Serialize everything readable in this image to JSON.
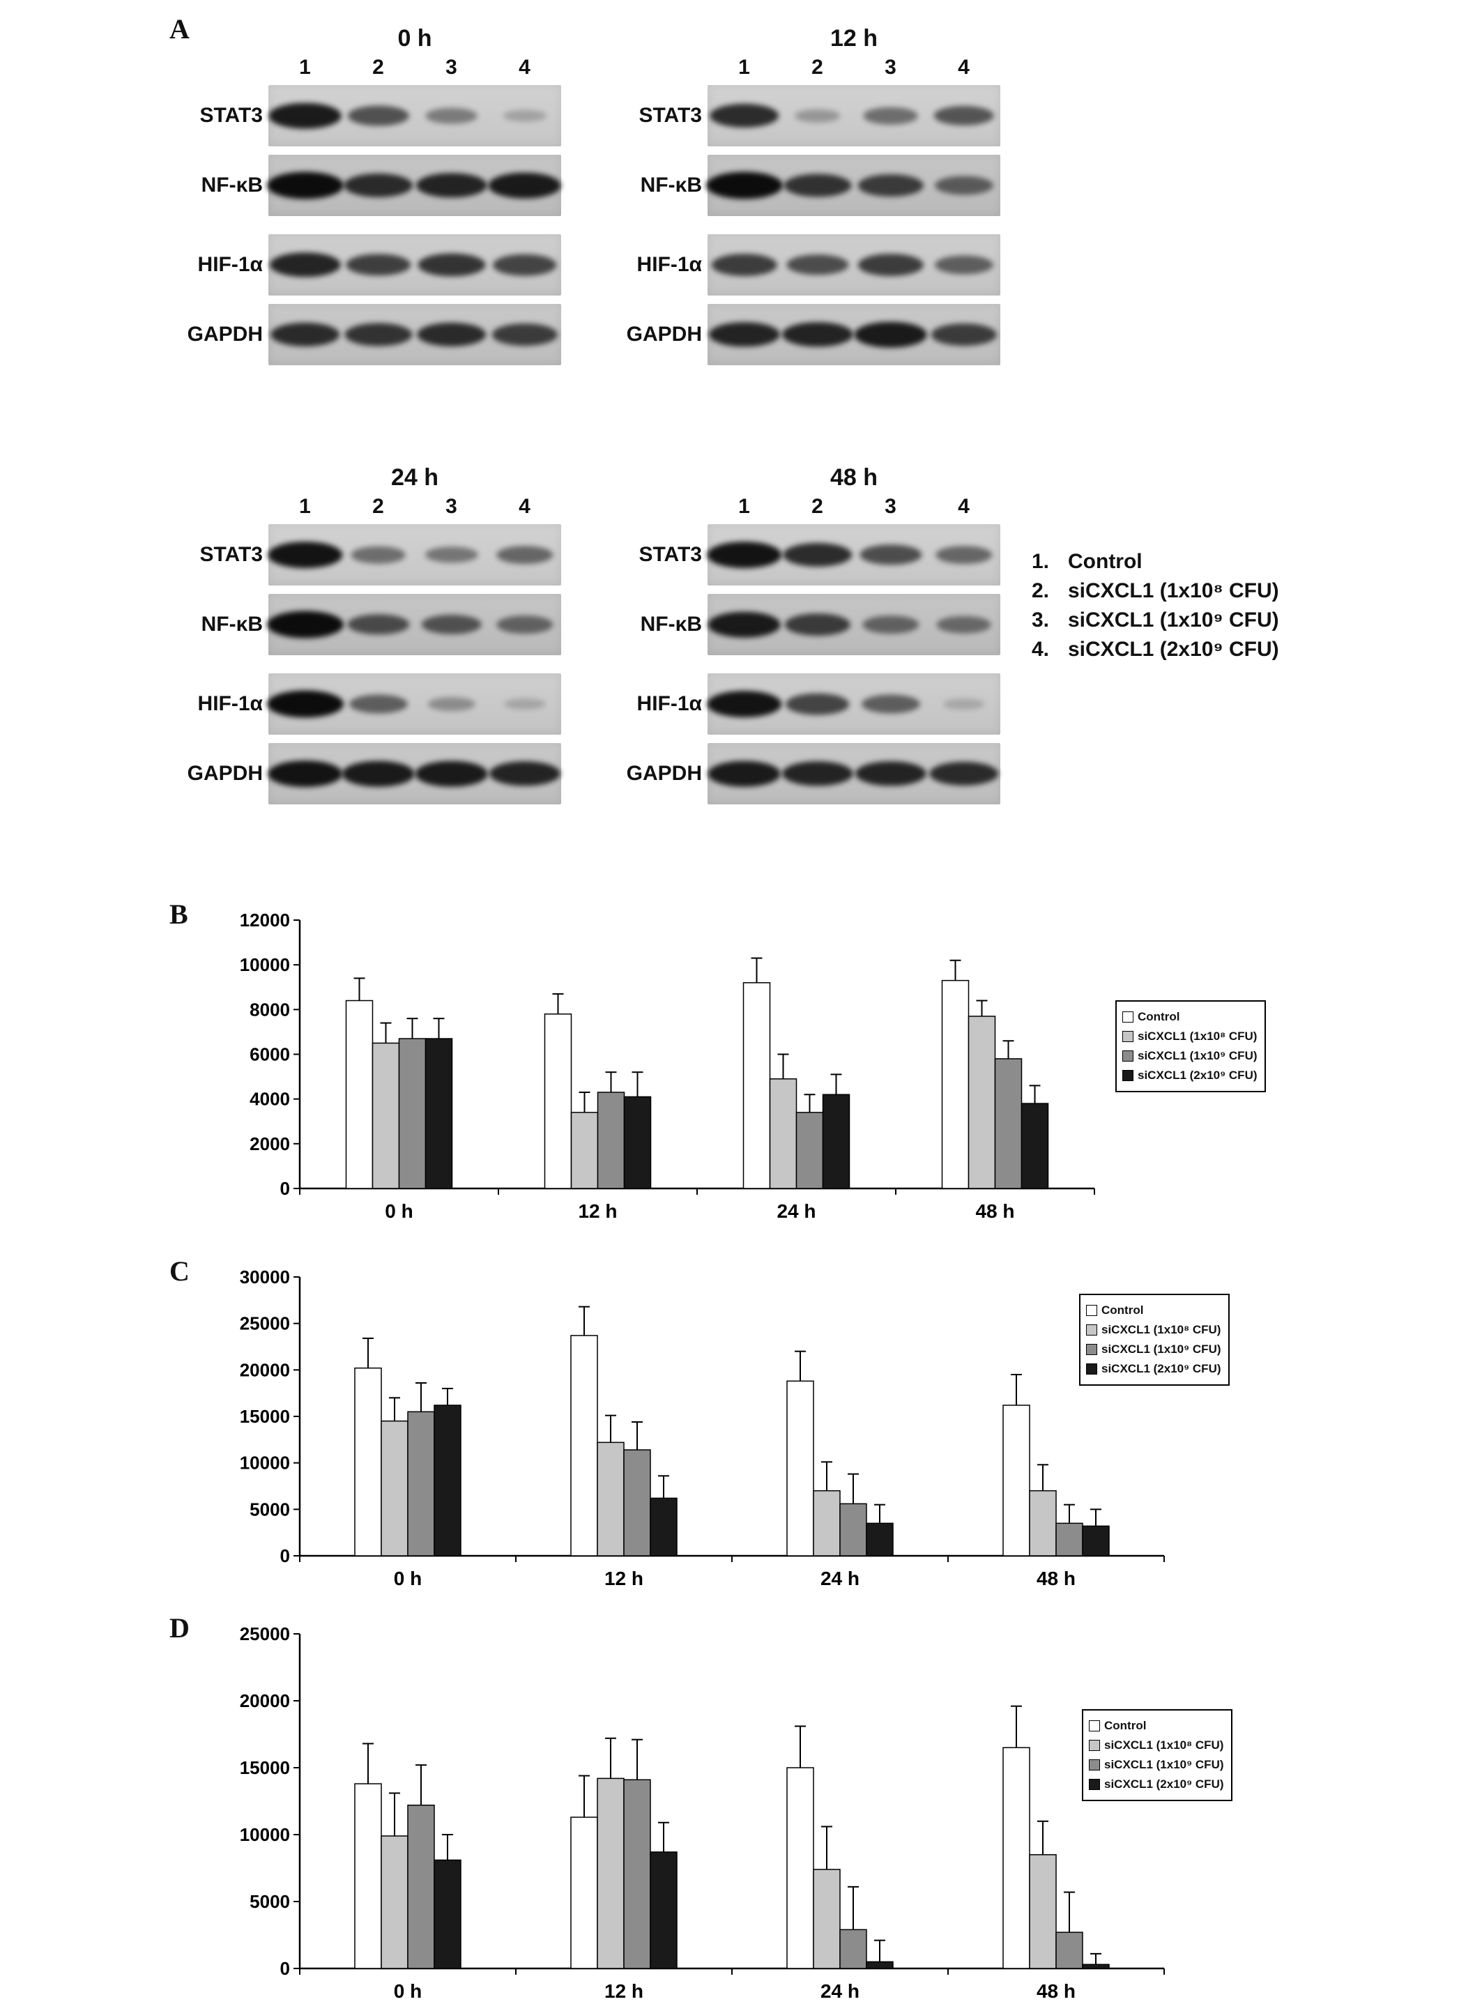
{
  "labels": {
    "a": "A",
    "b": "B",
    "c": "C",
    "d": "D"
  },
  "panel_a": {
    "lane_numbers": [
      "1",
      "2",
      "3",
      "4"
    ],
    "groups": [
      {
        "title": "0 h",
        "rows": [
          {
            "label": "STAT3",
            "bands": [
              0.9,
              0.58,
              0.32,
              0.08
            ]
          },
          {
            "label": "NF-κB",
            "bands": [
              1.0,
              0.8,
              0.85,
              0.9
            ]
          },
          {
            "label": "HIF-1α",
            "bands": [
              0.85,
              0.68,
              0.75,
              0.65
            ]
          },
          {
            "label": "GAPDH",
            "bands": [
              0.8,
              0.75,
              0.8,
              0.7
            ]
          }
        ]
      },
      {
        "title": "12 h",
        "rows": [
          {
            "label": "STAT3",
            "bands": [
              0.8,
              0.15,
              0.4,
              0.55
            ]
          },
          {
            "label": "NF-κB",
            "bands": [
              1.0,
              0.75,
              0.7,
              0.5
            ]
          },
          {
            "label": "HIF-1α",
            "bands": [
              0.7,
              0.6,
              0.7,
              0.5
            ]
          },
          {
            "label": "GAPDH",
            "bands": [
              0.85,
              0.85,
              0.9,
              0.7
            ]
          }
        ]
      },
      {
        "title": "24 h",
        "rows": [
          {
            "label": "STAT3",
            "bands": [
              0.95,
              0.4,
              0.35,
              0.45
            ]
          },
          {
            "label": "NF-κB",
            "bands": [
              1.0,
              0.6,
              0.55,
              0.45
            ]
          },
          {
            "label": "HIF-1α",
            "bands": [
              1.0,
              0.5,
              0.2,
              0.05
            ]
          },
          {
            "label": "GAPDH",
            "bands": [
              0.95,
              0.9,
              0.9,
              0.85
            ]
          }
        ]
      },
      {
        "title": "48 h",
        "rows": [
          {
            "label": "STAT3",
            "bands": [
              0.95,
              0.8,
              0.6,
              0.45
            ]
          },
          {
            "label": "NF-κB",
            "bands": [
              0.9,
              0.7,
              0.45,
              0.4
            ]
          },
          {
            "label": "HIF-1α",
            "bands": [
              0.95,
              0.65,
              0.5,
              0.03
            ]
          },
          {
            "label": "GAPDH",
            "bands": [
              0.9,
              0.85,
              0.85,
              0.8
            ]
          }
        ]
      }
    ],
    "legend": [
      {
        "num": "1.",
        "text": "Control"
      },
      {
        "num": "2.",
        "text": "siCXCL1 (1x10⁸ CFU)"
      },
      {
        "num": "3.",
        "text": "siCXCL1 (1x10⁹ CFU)"
      },
      {
        "num": "4.",
        "text": "siCXCL1 (2x10⁹ CFU)"
      }
    ]
  },
  "chart_data": [
    {
      "id": "B",
      "type": "bar",
      "title": "",
      "categories": [
        "0 h",
        "12 h",
        "24 h",
        "48 h"
      ],
      "xlabel": "",
      "ylabel": "",
      "ylim": [
        0,
        12000
      ],
      "ytick_step": 2000,
      "grid": false,
      "legend_position": "right",
      "series": [
        {
          "name": "Control",
          "color": "#ffffff",
          "values": [
            8400,
            7800,
            9200,
            9300
          ],
          "errors": [
            1000,
            900,
            1100,
            900
          ]
        },
        {
          "name": "siCXCL1 (1x10⁸ CFU)",
          "color": "#c6c6c6",
          "values": [
            6500,
            3400,
            4900,
            7700
          ],
          "errors": [
            900,
            900,
            1100,
            700
          ]
        },
        {
          "name": "siCXCL1 (1x10⁹ CFU)",
          "color": "#8c8c8c",
          "values": [
            6700,
            4300,
            3400,
            5800
          ],
          "errors": [
            900,
            900,
            800,
            800
          ]
        },
        {
          "name": "siCXCL1 (2x10⁹ CFU)",
          "color": "#1a1a1a",
          "values": [
            6700,
            4100,
            4200,
            3800
          ],
          "errors": [
            900,
            1100,
            900,
            800
          ]
        }
      ]
    },
    {
      "id": "C",
      "type": "bar",
      "title": "",
      "categories": [
        "0 h",
        "12 h",
        "24 h",
        "48 h"
      ],
      "xlabel": "",
      "ylabel": "",
      "ylim": [
        0,
        30000
      ],
      "ytick_step": 5000,
      "grid": false,
      "legend_position": "right",
      "series": [
        {
          "name": "Control",
          "color": "#ffffff",
          "values": [
            20200,
            23700,
            18800,
            16200
          ],
          "errors": [
            3200,
            3100,
            3200,
            3300
          ]
        },
        {
          "name": "siCXCL1 (1x10⁸ CFU)",
          "color": "#c6c6c6",
          "values": [
            14500,
            12200,
            7000,
            7000
          ],
          "errors": [
            2500,
            2900,
            3100,
            2800
          ]
        },
        {
          "name": "siCXCL1 (1x10⁹ CFU)",
          "color": "#8c8c8c",
          "values": [
            15500,
            11400,
            5600,
            3500
          ],
          "errors": [
            3100,
            3000,
            3200,
            2000
          ]
        },
        {
          "name": "siCXCL1 (2x10⁹ CFU)",
          "color": "#1a1a1a",
          "values": [
            16200,
            6200,
            3500,
            3200
          ],
          "errors": [
            1800,
            2400,
            2000,
            1800
          ]
        }
      ]
    },
    {
      "id": "D",
      "type": "bar",
      "title": "",
      "categories": [
        "0 h",
        "12 h",
        "24 h",
        "48 h"
      ],
      "xlabel": "",
      "ylabel": "",
      "ylim": [
        0,
        25000
      ],
      "ytick_step": 5000,
      "grid": false,
      "legend_position": "right",
      "series": [
        {
          "name": "Control",
          "color": "#ffffff",
          "values": [
            13800,
            11300,
            15000,
            16500
          ],
          "errors": [
            3000,
            3100,
            3100,
            3100
          ]
        },
        {
          "name": "siCXCL1 (1x10⁸ CFU)",
          "color": "#c6c6c6",
          "values": [
            9900,
            14200,
            7400,
            8500
          ],
          "errors": [
            3200,
            3000,
            3200,
            2500
          ]
        },
        {
          "name": "siCXCL1 (1x10⁹ CFU)",
          "color": "#8c8c8c",
          "values": [
            12200,
            14100,
            2900,
            2700
          ],
          "errors": [
            3000,
            3000,
            3200,
            3000
          ]
        },
        {
          "name": "siCXCL1 (2x10⁹ CFU)",
          "color": "#1a1a1a",
          "values": [
            8100,
            8700,
            500,
            300
          ],
          "errors": [
            1900,
            2200,
            1600,
            800
          ]
        }
      ]
    }
  ]
}
